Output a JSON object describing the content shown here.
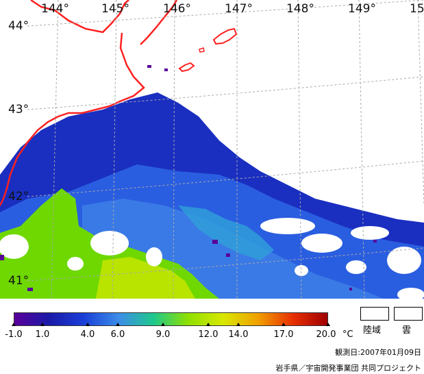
{
  "map": {
    "longitude_labels": [
      "144°",
      "145°",
      "146°",
      "147°",
      "148°",
      "149°",
      "15"
    ],
    "latitude_labels": [
      "44°",
      "43°",
      "42°",
      "41°"
    ]
  },
  "legend": {
    "ticks": [
      "-1.0",
      "1.0",
      "4.0",
      "6.0",
      "9.0",
      "12.0",
      "14.0",
      "17.0",
      "20.0"
    ],
    "unit": "°C",
    "land_label": "陸域",
    "cloud_label": "雲"
  },
  "observation_date": "観測日:2007年01月09日",
  "credit": "岩手県／宇宙開発事業団 共同プロジェクト",
  "colors": {
    "coast": "#ff2020",
    "grid": "#aaaaaa",
    "scale": [
      "#5a009a",
      "#1a1aa8",
      "#1a3fd8",
      "#3c8ce8",
      "#1ec88c",
      "#90e000",
      "#d8e800",
      "#f0a000",
      "#e83000",
      "#a00000"
    ]
  }
}
